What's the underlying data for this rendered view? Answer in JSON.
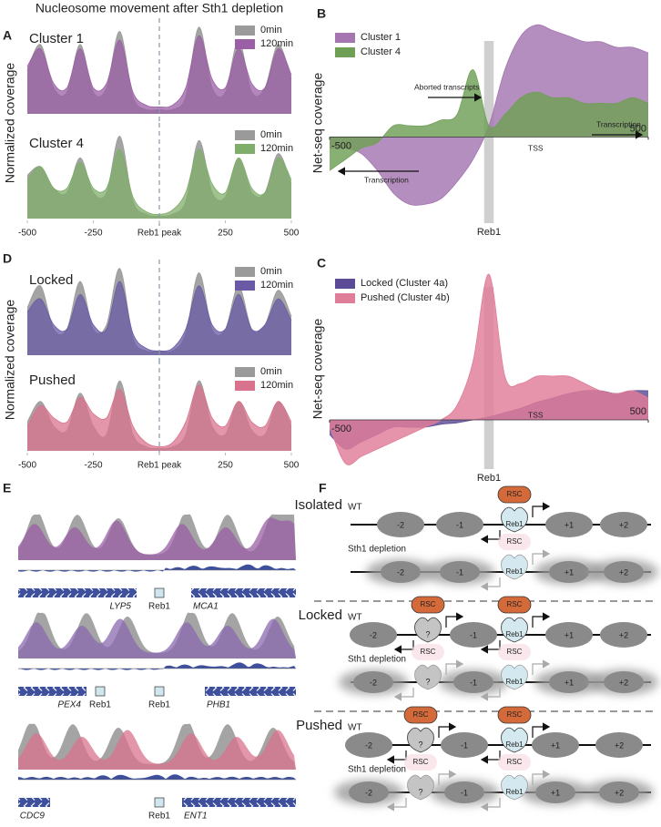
{
  "title": "Nucleosome movement after Sth1 depletion",
  "panel_labels": [
    "A",
    "B",
    "C",
    "D",
    "E",
    "F"
  ],
  "chart_data": [
    {
      "type": "area",
      "subtitle": "Cluster 1",
      "ylabel": "Normalized coverage",
      "legend": "upper right",
      "vline": 0,
      "x": [
        -500,
        -450,
        -400,
        -350,
        -300,
        -250,
        -200,
        -150,
        -100,
        -50,
        0,
        50,
        100,
        150,
        200,
        250,
        300,
        350,
        400,
        450,
        500
      ],
      "xlim": [
        -500,
        500
      ],
      "ylim": [
        0,
        1.05
      ],
      "series": [
        {
          "name": "0min",
          "color": "#9a9a9a",
          "values": [
            0.5,
            0.8,
            0.3,
            0.25,
            0.8,
            0.25,
            0.3,
            0.95,
            0.2,
            0.05,
            0.05,
            0.05,
            0.2,
            1.0,
            0.3,
            0.25,
            0.85,
            0.25,
            0.3,
            0.8,
            0.4
          ]
        },
        {
          "name": "120min",
          "color": "#9b5fa6",
          "values": [
            0.55,
            0.75,
            0.35,
            0.3,
            0.75,
            0.3,
            0.35,
            0.85,
            0.25,
            0.1,
            0.08,
            0.1,
            0.3,
            0.9,
            0.4,
            0.3,
            0.75,
            0.35,
            0.3,
            0.75,
            0.45
          ]
        }
      ]
    },
    {
      "type": "area",
      "subtitle": "Cluster 4",
      "legend": "upper right",
      "vline": 0,
      "x": [
        -500,
        -450,
        -400,
        -350,
        -300,
        -250,
        -200,
        -150,
        -100,
        -50,
        0,
        50,
        100,
        150,
        200,
        250,
        300,
        350,
        400,
        450,
        500
      ],
      "xlim": [
        -500,
        500
      ],
      "ylim": [
        0,
        1.05
      ],
      "xticks": [
        -500,
        -250,
        {
          "value": 0,
          "label": "Reb1 peak"
        },
        250,
        500
      ],
      "series": [
        {
          "name": "0min",
          "color": "#9a9a9a",
          "values": [
            0.5,
            0.6,
            0.35,
            0.3,
            0.7,
            0.3,
            0.3,
            0.95,
            0.2,
            0.05,
            0.03,
            0.05,
            0.2,
            0.9,
            0.3,
            0.25,
            0.7,
            0.3,
            0.3,
            0.75,
            0.4
          ]
        },
        {
          "name": "120min",
          "color": "#7fae6a",
          "values": [
            0.45,
            0.6,
            0.35,
            0.35,
            0.65,
            0.35,
            0.35,
            0.8,
            0.25,
            0.08,
            0.05,
            0.1,
            0.3,
            0.8,
            0.4,
            0.3,
            0.7,
            0.35,
            0.3,
            0.7,
            0.45
          ]
        }
      ]
    },
    {
      "type": "area",
      "ylabel": "Net-seq coverage",
      "legend": "upper left",
      "x": [
        -500,
        -450,
        -400,
        -350,
        -300,
        -250,
        -200,
        -150,
        -100,
        -50,
        0,
        50,
        100,
        150,
        200,
        250,
        300,
        350,
        400,
        450,
        500
      ],
      "xlim": [
        -500,
        500
      ],
      "ylim": [
        -0.85,
        1.1
      ],
      "xticks": [
        -500,
        500
      ],
      "band": {
        "x": [
          -15,
          15
        ],
        "label": "Reb1"
      },
      "annotations": [
        "Aborted transcripts",
        "Transcription",
        "Transcription",
        "TSS"
      ],
      "series": [
        {
          "name": "Cluster 1",
          "color": "#a475b0",
          "values": [
            -0.1,
            -0.1,
            -0.15,
            -0.3,
            -0.5,
            -0.6,
            -0.6,
            -0.55,
            -0.4,
            -0.2,
            0.1,
            0.6,
            0.9,
            1.0,
            0.95,
            0.9,
            0.85,
            0.85,
            0.8,
            0.8,
            0.75
          ]
        },
        {
          "name": "Cluster 4",
          "color": "#6f9f55",
          "values": [
            -0.3,
            -0.2,
            -0.1,
            -0.05,
            0.1,
            0.1,
            0.1,
            0.15,
            0.2,
            0.6,
            0.1,
            0.2,
            0.35,
            0.4,
            0.35,
            0.35,
            0.3,
            0.3,
            0.3,
            0.35,
            0.3
          ]
        }
      ]
    },
    {
      "type": "area",
      "subtitle": "Locked",
      "ylabel": "Normalized coverage",
      "legend": "upper right",
      "vline": 0,
      "x": [
        -500,
        -450,
        -400,
        -350,
        -300,
        -250,
        -200,
        -150,
        -100,
        -50,
        0,
        50,
        100,
        150,
        200,
        250,
        300,
        350,
        400,
        450,
        500
      ],
      "xlim": [
        -500,
        500
      ],
      "ylim": [
        0,
        1.05
      ],
      "series": [
        {
          "name": "0min",
          "color": "#9a9a9a",
          "values": [
            0.55,
            0.8,
            0.3,
            0.3,
            0.85,
            0.3,
            0.35,
            1.0,
            0.2,
            0.05,
            0.05,
            0.05,
            0.25,
            0.95,
            0.3,
            0.3,
            0.8,
            0.3,
            0.35,
            0.75,
            0.45
          ]
        },
        {
          "name": "120min",
          "color": "#6a5aa6",
          "values": [
            0.5,
            0.65,
            0.35,
            0.3,
            0.7,
            0.35,
            0.3,
            0.85,
            0.25,
            0.08,
            0.05,
            0.08,
            0.3,
            0.8,
            0.35,
            0.3,
            0.7,
            0.3,
            0.35,
            0.65,
            0.4
          ]
        }
      ]
    },
    {
      "type": "area",
      "subtitle": "Pushed",
      "legend": "upper right",
      "vline": 0,
      "x": [
        -500,
        -450,
        -400,
        -350,
        -300,
        -250,
        -200,
        -150,
        -100,
        -50,
        0,
        50,
        100,
        150,
        200,
        250,
        300,
        350,
        400,
        450,
        500
      ],
      "xlim": [
        -500,
        500
      ],
      "ylim": [
        0,
        1.05
      ],
      "xticks": [
        -500,
        -250,
        {
          "value": 0,
          "label": "Reb1 peak"
        },
        250,
        500
      ],
      "series": [
        {
          "name": "0min",
          "color": "#9a9a9a",
          "values": [
            0.35,
            0.6,
            0.3,
            0.25,
            0.7,
            0.3,
            0.2,
            0.85,
            0.2,
            0.05,
            0.03,
            0.05,
            0.2,
            0.85,
            0.3,
            0.2,
            0.6,
            0.25,
            0.2,
            0.6,
            0.3
          ]
        },
        {
          "name": "120min",
          "color": "#d9728c",
          "values": [
            0.3,
            0.55,
            0.4,
            0.35,
            0.65,
            0.45,
            0.4,
            0.75,
            0.3,
            0.1,
            0.05,
            0.1,
            0.35,
            0.8,
            0.4,
            0.3,
            0.6,
            0.35,
            0.3,
            0.6,
            0.35
          ]
        }
      ]
    },
    {
      "type": "area",
      "ylabel": "Net-seq coverage",
      "legend": "upper left",
      "x": [
        -500,
        -450,
        -400,
        -350,
        -300,
        -250,
        -200,
        -150,
        -100,
        -50,
        0,
        50,
        100,
        150,
        200,
        250,
        300,
        350,
        400,
        450,
        500
      ],
      "xlim": [
        -500,
        500
      ],
      "ylim": [
        -0.4,
        1.1
      ],
      "xticks": [
        -500,
        500
      ],
      "band": {
        "x": [
          -15,
          15
        ],
        "label": "Reb1"
      },
      "annotations": [
        "TSS"
      ],
      "series": [
        {
          "name": "Locked (Cluster 4a)",
          "color": "#5b4a95",
          "values": [
            -0.1,
            -0.2,
            -0.15,
            -0.1,
            -0.05,
            -0.05,
            -0.05,
            -0.03,
            -0.02,
            0.0,
            0.02,
            0.05,
            0.08,
            0.12,
            0.15,
            0.18,
            0.2,
            0.2,
            0.18,
            0.2,
            0.2
          ]
        },
        {
          "name": "Pushed (Cluster 4b)",
          "color": "#e07d98",
          "values": [
            -0.05,
            -0.3,
            -0.25,
            -0.2,
            -0.15,
            -0.1,
            -0.05,
            0.0,
            0.1,
            0.4,
            1.0,
            0.3,
            0.25,
            0.3,
            0.3,
            0.3,
            0.25,
            0.2,
            0.18,
            0.2,
            0.15
          ]
        }
      ]
    }
  ],
  "tracks": [
    {
      "genes": [
        "LYP5",
        "MCA1"
      ],
      "sites": [
        "Reb1"
      ]
    },
    {
      "genes": [
        "PEX4",
        "PHB1"
      ],
      "sites": [
        "Reb1",
        "Reb1"
      ]
    },
    {
      "genes": [
        "CDC9",
        "ENT1"
      ],
      "sites": [
        "Reb1"
      ]
    }
  ],
  "model": {
    "sections": [
      "Isolated",
      "Locked",
      "Pushed"
    ],
    "wt": "WT",
    "depletion": "Sth1 depletion",
    "nucleosomes": [
      "-2",
      "-1",
      "+1",
      "+2"
    ],
    "reb1": "Reb1",
    "rsc": "RSC",
    "unknown": "?"
  }
}
